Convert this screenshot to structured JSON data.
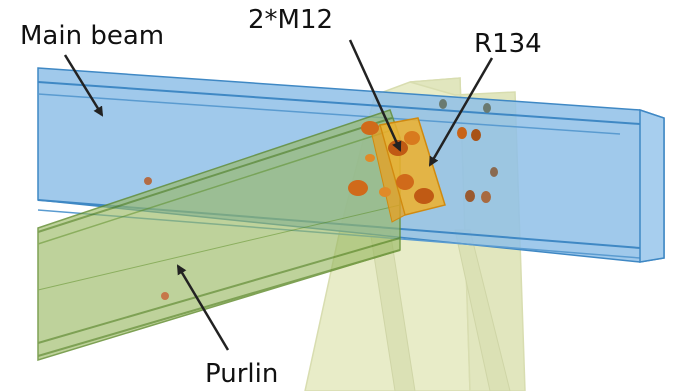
{
  "labels": {
    "main_beam": "Main beam",
    "bolts": "2*M12",
    "cleat": "R134",
    "purlin": "Purlin"
  },
  "colors": {
    "beam_blue": "#8fc0e8",
    "beam_blue_edge": "#3f88c4",
    "purlin_green": "#9ab964",
    "purlin_green_edge": "#5e8a2a",
    "column_yellow": "#d6dd9c",
    "cleat_orange": "#f0b02a",
    "bolt_brown": "#b8561e",
    "arrow": "#222222"
  },
  "icons": [
    "arrow-main-beam",
    "arrow-bolts",
    "arrow-cleat",
    "arrow-purlin"
  ]
}
